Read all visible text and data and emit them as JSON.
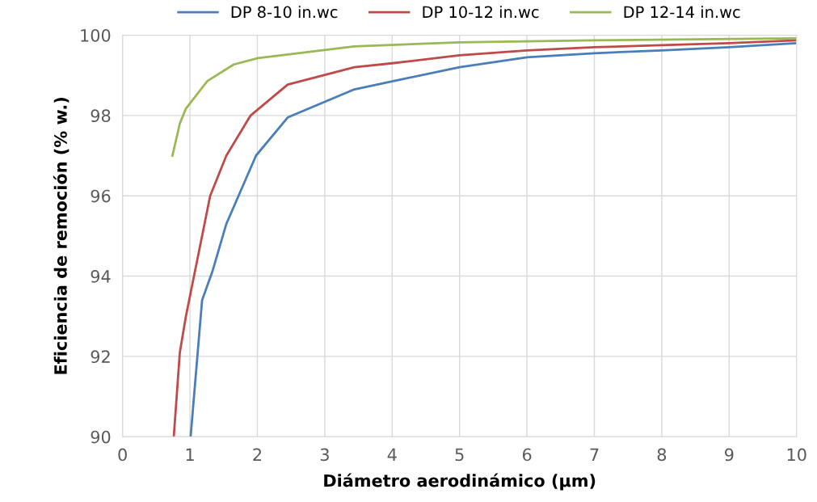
{
  "chart_data": {
    "type": "line",
    "xlabel": "Diámetro aerodinámico (µm)",
    "ylabel": "Eficiencia de remoción (% w.)",
    "xlim": [
      0,
      10
    ],
    "xticks": [
      0,
      1,
      2,
      3,
      4,
      5,
      6,
      7,
      8,
      9,
      10
    ],
    "ylim": [
      90,
      100
    ],
    "yticks": [
      90,
      92,
      94,
      96,
      98,
      100
    ],
    "grid": true,
    "legend": "top",
    "marker": "none",
    "line_style": "solid",
    "series": [
      {
        "name": "DP 8-10 in.wc",
        "color": "#4a7ebb",
        "x": [
          1.01,
          1.18,
          1.33,
          1.54,
          1.98,
          2.45,
          3.44,
          4,
          5,
          6,
          7,
          8,
          9,
          10
        ],
        "values": [
          90,
          93.4,
          94.1,
          95.3,
          97.0,
          97.95,
          98.65,
          98.85,
          99.2,
          99.45,
          99.55,
          99.62,
          99.7,
          99.8
        ]
      },
      {
        "name": "DP 10-12 in.wc",
        "color": "#be4b48",
        "x": [
          0.76,
          0.85,
          0.94,
          1.06,
          1.3,
          1.54,
          1.9,
          2.45,
          3.44,
          4,
          5,
          6,
          7,
          8,
          9,
          10
        ],
        "values": [
          90,
          92.1,
          93.0,
          94.0,
          96.0,
          97.0,
          98.0,
          98.77,
          99.2,
          99.3,
          99.5,
          99.62,
          99.7,
          99.75,
          99.8,
          99.87
        ]
      },
      {
        "name": "DP 12-14 in.wc",
        "color": "#98b954",
        "x": [
          0.74,
          0.85,
          0.94,
          1.26,
          1.65,
          2.01,
          3.44,
          5,
          7,
          10
        ],
        "values": [
          97.0,
          97.8,
          98.17,
          98.86,
          99.27,
          99.43,
          99.72,
          99.82,
          99.87,
          99.92
        ]
      }
    ]
  }
}
